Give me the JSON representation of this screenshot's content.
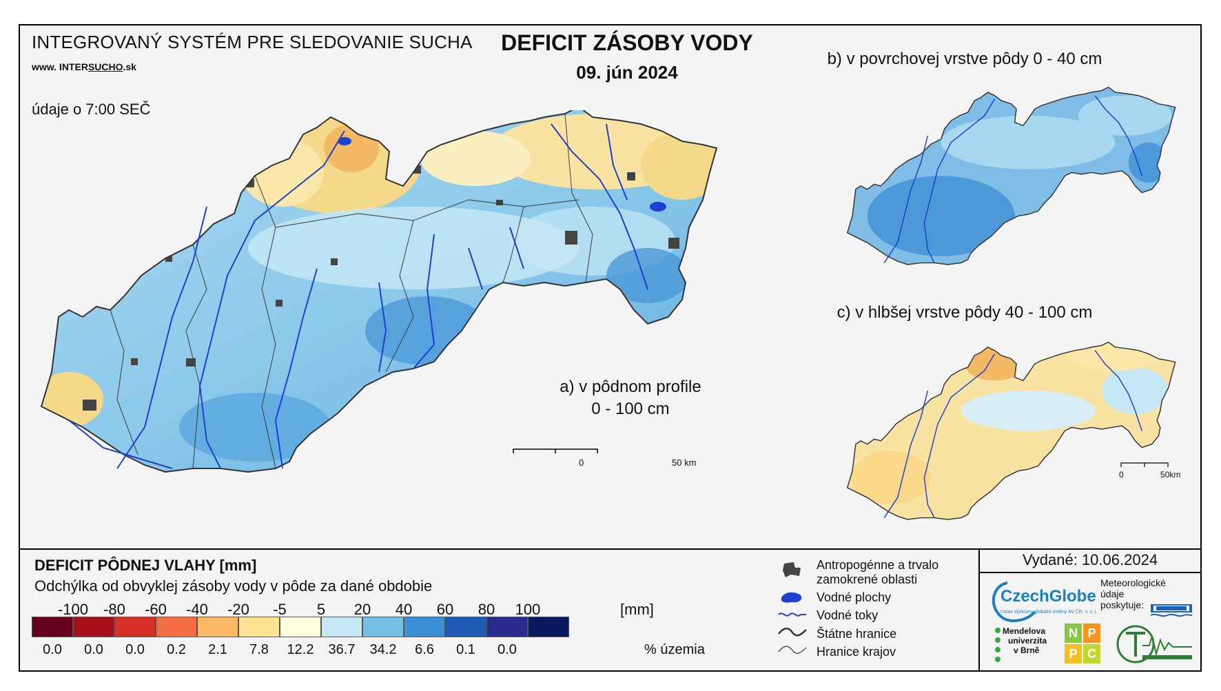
{
  "header": {
    "system_title": "INTEGROVANÝ SYSTÉM PRE SLEDOVANIE SUCHA",
    "url_prefix": "www. INTER",
    "url_underlined": "SUCHO",
    "url_suffix": ".sk",
    "time_note": "údaje o 7:00 SEČ",
    "title": "DEFICIT ZÁSOBY VODY",
    "date": "09. jún 2024"
  },
  "maps": {
    "a": {
      "label_line1": "a) v pôdnom profile",
      "label_line2": "0 - 100 cm",
      "scale_start": "0",
      "scale_end": "50 km"
    },
    "b": {
      "label": "b) v povrchovej vrstve pôdy 0 - 40 cm"
    },
    "c": {
      "label": "c) v hlbšej vrstve pôdy 40 - 100 cm",
      "scale_start": "0",
      "scale_end": "50km"
    }
  },
  "legend": {
    "title": "DEFICIT PÔDNEJ VLAHY [mm]",
    "subtitle": "Odchýlka od obvyklej zásoby vody v pôde za dané obdobie",
    "unit": "[mm]",
    "percent_unit": "% územia",
    "ticks": [
      "-100",
      "-80",
      "-60",
      "-40",
      "-20",
      "-5",
      "5",
      "20",
      "40",
      "60",
      "80",
      "100"
    ],
    "bins": [
      {
        "color": "#67001f",
        "percent": "0.0"
      },
      {
        "color": "#a50f15",
        "percent": "0.0"
      },
      {
        "color": "#d73027",
        "percent": "0.0"
      },
      {
        "color": "#f46d43",
        "percent": "0.2"
      },
      {
        "color": "#fdb863",
        "percent": "2.1"
      },
      {
        "color": "#fee391",
        "percent": "7.8"
      },
      {
        "color": "#ffffe0",
        "percent": "12.2"
      },
      {
        "color": "#c6e8f5",
        "percent": "36.7"
      },
      {
        "color": "#74c0e6",
        "percent": "34.2"
      },
      {
        "color": "#3a8fd6",
        "percent": "6.6"
      },
      {
        "color": "#1e5bb8",
        "percent": "0.1"
      },
      {
        "color": "#2b2a8f",
        "percent": "0.0"
      },
      {
        "color": "#0b1a5e",
        "percent": ""
      }
    ]
  },
  "map_legend": {
    "anthropogenic": "Antropogénne a trvalo zamokrené oblasti",
    "anthropogenic_l1": "Antropogénne a trvalo",
    "anthropogenic_l2": "zamokrené oblasti",
    "water_bodies": "Vodné plochy",
    "rivers": "Vodné toky",
    "state_borders": "Štátne hranice",
    "region_borders": "Hranice krajov"
  },
  "footer": {
    "issued": "Vydané: 10.06.2024",
    "czechglobe": "CzechGlobe",
    "czechglobe_sub": "Ústav výzkumu globální změny AV ČR, v. v. i.",
    "meteo_l1": "Meteorologické",
    "meteo_l2": "údaje",
    "meteo_l3": "poskytuje:",
    "mendel_l1": "Mendelova",
    "mendel_l2": "univerzita",
    "mendel_l3": "v Brně",
    "nppc": [
      "N",
      "P",
      "P",
      "C"
    ]
  },
  "colors": {
    "map_blue": "#8cc9ea",
    "map_deep_blue": "#4c98d8",
    "map_yellow": "#f5d98a",
    "river": "#1f3fd0",
    "urban": "#444444"
  }
}
